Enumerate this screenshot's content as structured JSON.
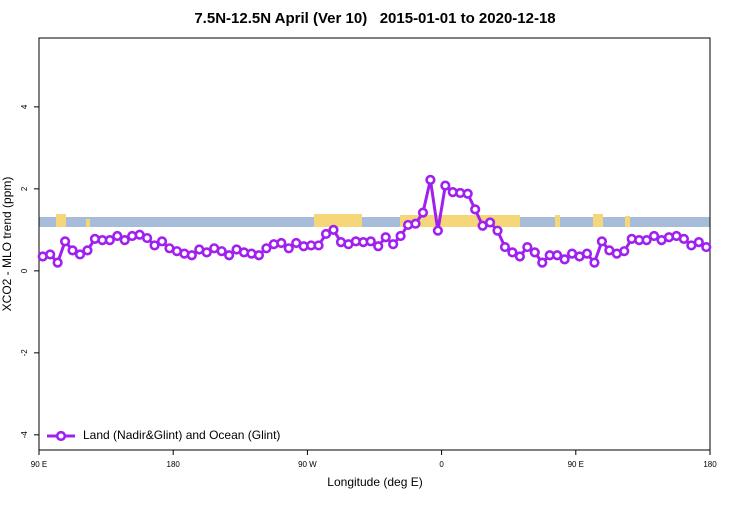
{
  "chart_data": {
    "type": "line",
    "title": "7.5N-12.5N April (Ver 10)   2015-01-01 to 2020-12-18",
    "x_label": "Longitude (deg E)",
    "y_label": "XCO2 - MLO trend (ppm)",
    "xlim": [
      90,
      540
    ],
    "xticks": [
      {
        "value": 90,
        "label": "90 E"
      },
      {
        "value": 180,
        "label": "180"
      },
      {
        "value": 270,
        "label": "90 W"
      },
      {
        "value": 360,
        "label": "0"
      },
      {
        "value": 450,
        "label": "90 E"
      },
      {
        "value": 540,
        "label": "180"
      }
    ],
    "ylim": [
      -4.37,
      5.68
    ],
    "yticks": [
      -4,
      -2,
      0,
      2,
      4
    ],
    "legend": "bottom-left",
    "series": [
      {
        "name": "Land (Nadir&Glint) and Ocean (Glint)",
        "color": "#a020f0",
        "x": [
          92.5,
          97.5,
          102.5,
          107.5,
          112.5,
          117.5,
          122.5,
          127.5,
          132.5,
          137.5,
          142.5,
          147.5,
          152.5,
          157.5,
          162.5,
          167.5,
          172.5,
          177.5,
          182.5,
          187.5,
          192.5,
          197.5,
          202.5,
          207.5,
          212.5,
          217.5,
          222.5,
          227.5,
          232.5,
          237.5,
          242.5,
          247.5,
          252.5,
          257.5,
          262.5,
          267.5,
          272.5,
          277.5,
          282.5,
          287.5,
          292.5,
          297.5,
          302.5,
          307.5,
          312.5,
          317.5,
          322.5,
          327.5,
          332.5,
          337.5,
          342.5,
          347.5,
          352.5,
          357.5,
          362.5,
          367.5,
          372.5,
          377.5,
          382.5,
          387.5,
          392.5,
          397.5,
          402.5,
          407.5,
          412.5,
          417.5,
          422.5,
          427.5,
          432.5,
          437.5,
          442.5,
          447.5,
          452.5,
          457.5,
          462.5,
          467.5,
          472.5,
          477.5,
          482.5,
          487.5,
          492.5,
          497.5,
          502.5,
          507.5,
          512.5,
          517.5,
          522.5,
          527.5,
          532.5,
          537.5
        ],
        "values": [
          0.35,
          0.4,
          0.2,
          0.72,
          0.5,
          0.4,
          0.5,
          0.78,
          0.75,
          0.75,
          0.85,
          0.75,
          0.85,
          0.88,
          0.8,
          0.62,
          0.72,
          0.55,
          0.48,
          0.42,
          0.38,
          0.52,
          0.45,
          0.55,
          0.48,
          0.38,
          0.52,
          0.45,
          0.42,
          0.38,
          0.55,
          0.65,
          0.68,
          0.55,
          0.68,
          0.6,
          0.62,
          0.62,
          0.9,
          1.0,
          0.7,
          0.65,
          0.72,
          0.7,
          0.72,
          0.6,
          0.82,
          0.65,
          0.85,
          1.12,
          1.15,
          1.42,
          2.22,
          0.98,
          2.08,
          1.92,
          1.9,
          1.88,
          1.5,
          1.1,
          1.18,
          0.98,
          0.58,
          0.45,
          0.35,
          0.58,
          0.45,
          0.2,
          0.38,
          0.38,
          0.28,
          0.42,
          0.35,
          0.42,
          0.2,
          0.72,
          0.5,
          0.42,
          0.48,
          0.78,
          0.75,
          0.75,
          0.85,
          0.75,
          0.82,
          0.85,
          0.78,
          0.62,
          0.7,
          0.58
        ]
      }
    ]
  }
}
